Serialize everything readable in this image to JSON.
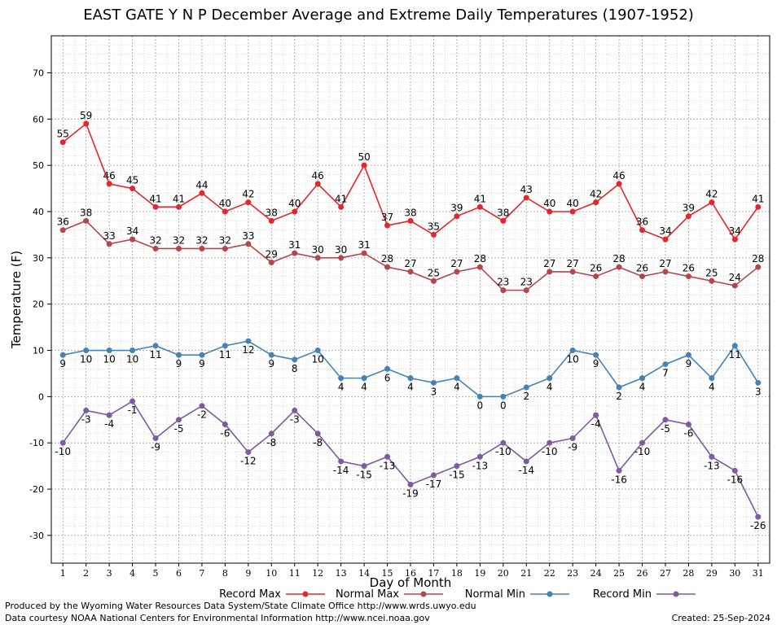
{
  "chart_data": {
    "type": "line",
    "title": "EAST GATE Y N P December Average and Extreme Daily Temperatures (1907-1952)",
    "xlabel": "Day of Month",
    "ylabel": "Temperature (F)",
    "x": [
      1,
      2,
      3,
      4,
      5,
      6,
      7,
      8,
      9,
      10,
      11,
      12,
      13,
      14,
      15,
      16,
      17,
      18,
      19,
      20,
      21,
      22,
      23,
      24,
      25,
      26,
      27,
      28,
      29,
      30,
      31
    ],
    "xlim": [
      0.5,
      31.5
    ],
    "ylim": [
      -36,
      78
    ],
    "yticks": [
      -30,
      -20,
      -10,
      0,
      10,
      20,
      30,
      40,
      50,
      60,
      70
    ],
    "grid": true,
    "legend_position": "bottom",
    "series": [
      {
        "name": "Record Max",
        "color": "#e8252a",
        "label_position": "above",
        "values": [
          55,
          59,
          46,
          45,
          41,
          41,
          44,
          40,
          42,
          38,
          40,
          46,
          41,
          50,
          37,
          38,
          35,
          39,
          41,
          38,
          43,
          40,
          40,
          42,
          46,
          36,
          34,
          39,
          42,
          34,
          41
        ]
      },
      {
        "name": "Normal Max",
        "color": "#b5474a",
        "label_position": "above",
        "values": [
          36,
          38,
          33,
          34,
          32,
          32,
          32,
          32,
          33,
          29,
          31,
          30,
          30,
          31,
          28,
          27,
          25,
          27,
          28,
          23,
          23,
          27,
          27,
          26,
          28,
          26,
          27,
          26,
          25,
          24,
          28
        ]
      },
      {
        "name": "Normal Min",
        "color": "#4682b4",
        "label_position": "below",
        "values": [
          9,
          10,
          10,
          10,
          11,
          9,
          9,
          11,
          12,
          9,
          8,
          10,
          4,
          4,
          6,
          4,
          3,
          4,
          0,
          0,
          2,
          4,
          10,
          9,
          2,
          4,
          7,
          9,
          4,
          11,
          3
        ]
      },
      {
        "name": "Record Min",
        "color": "#7d5b9e",
        "label_position": "below",
        "values": [
          -10,
          -3,
          -4,
          -1,
          -9,
          -5,
          -2,
          -6,
          -12,
          -8,
          -3,
          -8,
          -14,
          -15,
          -13,
          -19,
          -17,
          -15,
          -13,
          -10,
          -14,
          -10,
          -9,
          -4,
          -16,
          -10,
          -5,
          -6,
          -13,
          -16,
          -26
        ]
      }
    ]
  },
  "footer": {
    "credit_line1": "Produced by the Wyoming Water Resources Data System/State Climate Office http://www.wrds.uwyo.edu",
    "credit_line2": "Data courtesy NOAA National Centers for Environmental Information http://www.ncei.noaa.gov",
    "created": "Created:  25-Sep-2024"
  }
}
